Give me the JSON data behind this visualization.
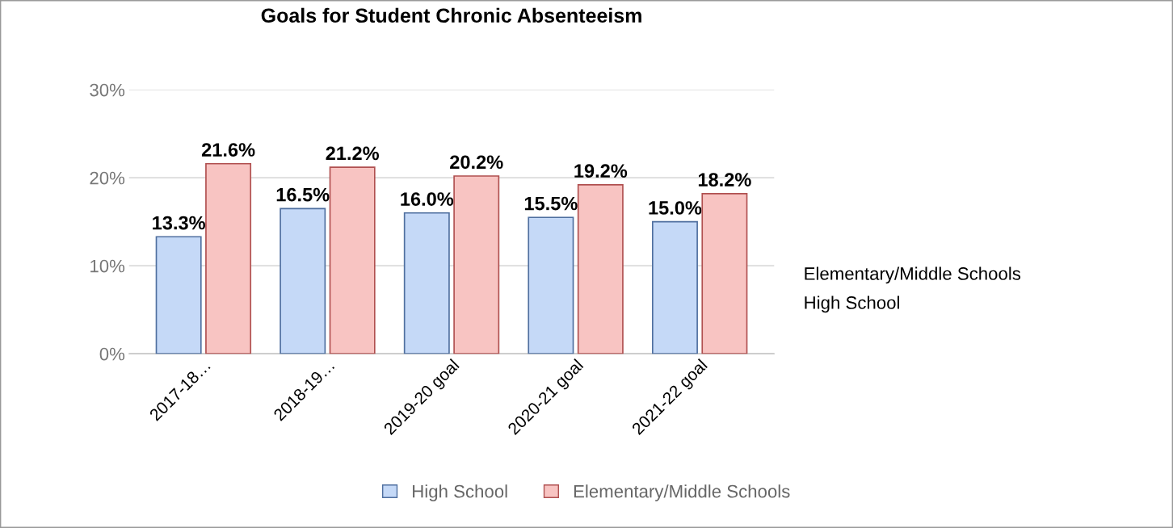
{
  "chart_data": {
    "type": "bar",
    "title": "Goals for Student Chronic Absenteeism",
    "categories": [
      "2017-18…",
      "2018-19…",
      "2019-20 goal",
      "2020-21 goal",
      "2021-22 goal"
    ],
    "series": [
      {
        "name": "High School",
        "color": "#c5d9f7",
        "values": [
          13.3,
          16.5,
          16.0,
          15.5,
          15.0
        ],
        "value_labels": [
          "13.3%",
          "16.5%",
          "16.0%",
          "15.5%",
          "15.0%"
        ]
      },
      {
        "name": "Elementary/Middle Schools",
        "color": "#f8c4c2",
        "values": [
          21.6,
          21.2,
          20.2,
          19.2,
          18.2
        ],
        "value_labels": [
          "21.6%",
          "21.2%",
          "20.2%",
          "19.2%",
          "18.2%"
        ]
      }
    ],
    "ylim": [
      0,
      30
    ],
    "yticks": [
      {
        "value": 0,
        "label": "0%"
      },
      {
        "value": 10,
        "label": "10%"
      },
      {
        "value": 20,
        "label": "20%"
      },
      {
        "value": 30,
        "label": "30%"
      }
    ],
    "grid": "y",
    "legend": "bottom",
    "annotations": [
      "Elementary/Middle Schools",
      "High School"
    ]
  }
}
